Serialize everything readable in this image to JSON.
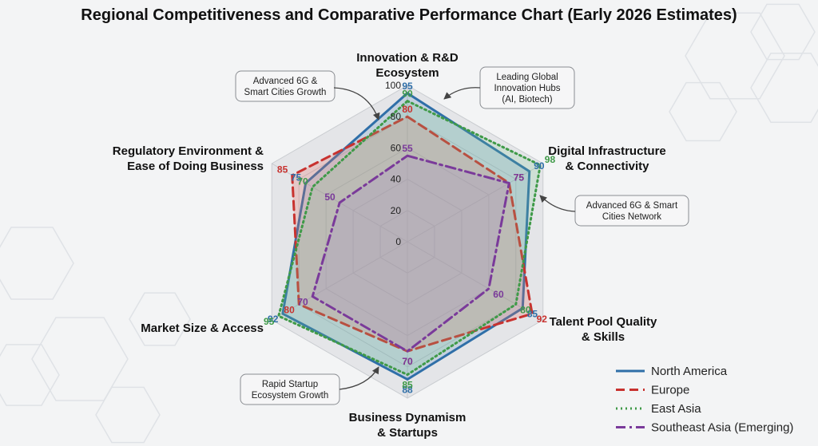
{
  "chart_data": {
    "type": "radar",
    "title": "Regional Competitiveness and Comparative Performance Chart (Early 2026 Estimates)",
    "axes": [
      [
        "Innovation & R&D",
        "Ecosystem"
      ],
      [
        "Digital Infrastructure",
        "& Connectivity"
      ],
      [
        "Talent Pool Quality",
        "& Skills"
      ],
      [
        "Business Dynamism",
        "& Startups"
      ],
      [
        "Market Size & Access"
      ],
      [
        "Regulatory Environment &",
        "Ease of Doing Business"
      ]
    ],
    "rlim": [
      0,
      100
    ],
    "ticks": [
      0,
      20,
      40,
      60,
      80,
      100
    ],
    "series": [
      {
        "name": "North America",
        "values": [
          95,
          90,
          85,
          88,
          92,
          75
        ],
        "color": "#2f6fa8",
        "dash": "solid"
      },
      {
        "name": "Europe",
        "values": [
          80,
          75,
          92,
          70,
          80,
          85
        ],
        "color": "#c8322f",
        "dash": "dashed"
      },
      {
        "name": "East Asia",
        "values": [
          90,
          98,
          80,
          85,
          95,
          70
        ],
        "color": "#3f9a48",
        "dash": "dotted"
      },
      {
        "name": "Southeast Asia (Emerging)",
        "values": [
          55,
          75,
          60,
          70,
          70,
          50
        ],
        "color": "#7a3a9a",
        "dash": "dashdot"
      }
    ],
    "annotations": [
      {
        "lines": [
          "Advanced 6G &",
          "Smart Cities Growth"
        ]
      },
      {
        "lines": [
          "Leading Global",
          "Innovation Hubs",
          "(AI, Biotech)"
        ]
      },
      {
        "lines": [
          "Advanced 6G & Smart",
          "Cities Network"
        ]
      },
      {
        "lines": [
          "Rapid Startup",
          "Ecosystem Growth"
        ]
      }
    ],
    "legend_position": "bottom-right",
    "grid": true
  }
}
